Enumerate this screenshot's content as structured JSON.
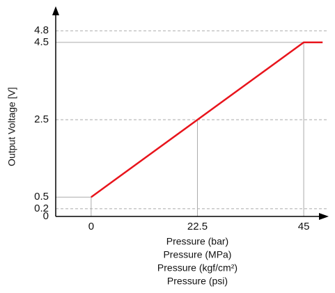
{
  "chart_data": {
    "type": "line",
    "ylabel": "Output Voltage [V]",
    "xlabel": [
      "Pressure (bar)",
      "Pressure (MPa)",
      "Pressure (kgf/cm²)",
      "Pressure (psi)"
    ],
    "x": [
      0,
      45,
      49
    ],
    "series": [
      {
        "color": "#e8141c",
        "values": [
          0.5,
          4.5,
          4.5
        ]
      }
    ],
    "xlim": [
      -7.5,
      50
    ],
    "ylim": [
      0,
      5.2
    ],
    "xticks": [
      0,
      22.5,
      45
    ],
    "yticks": [
      0,
      0.2,
      0.5,
      2.5,
      4.5,
      4.8
    ]
  }
}
